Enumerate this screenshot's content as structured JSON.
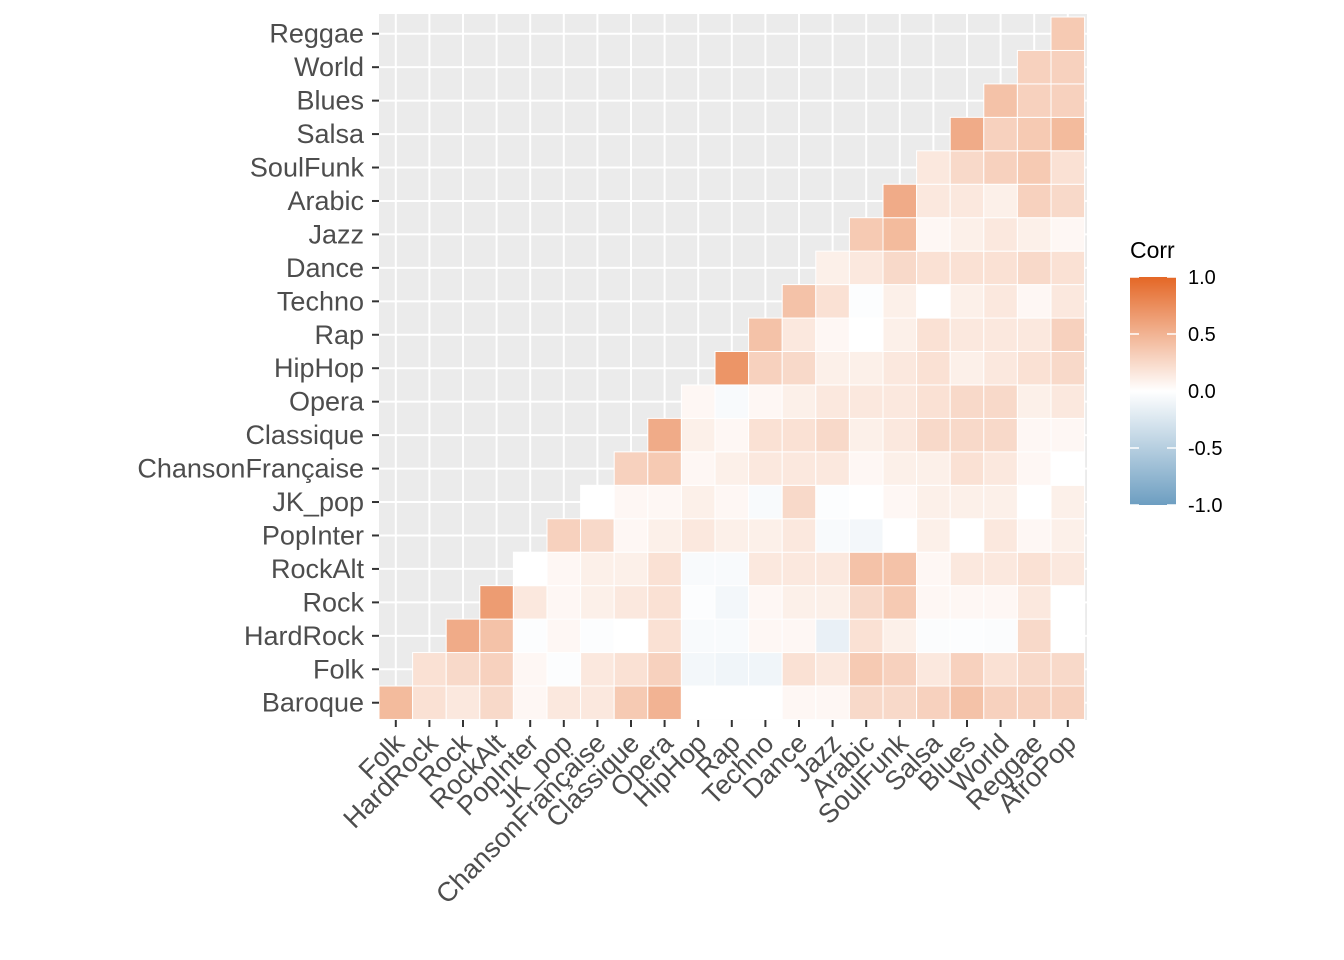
{
  "chart_data": {
    "type": "heatmap",
    "title": "",
    "xlabel": "",
    "ylabel": "",
    "x_categories": [
      "Folk",
      "HardRock",
      "Rock",
      "RockAlt",
      "PopInter",
      "JK_pop",
      "ChansonFrançaise",
      "Classique",
      "Opera",
      "HipHop",
      "Rap",
      "Techno",
      "Dance",
      "Jazz",
      "Arabic",
      "SoulFunk",
      "Salsa",
      "Blues",
      "World",
      "Reggae",
      "AfroPop"
    ],
    "y_categories": [
      "Baroque",
      "Folk",
      "HardRock",
      "Rock",
      "RockAlt",
      "PopInter",
      "JK_pop",
      "ChansonFrançaise",
      "Classique",
      "Opera",
      "HipHop",
      "Rap",
      "Techno",
      "Dance",
      "Jazz",
      "Arabic",
      "SoulFunk",
      "Salsa",
      "Blues",
      "World",
      "Reggae"
    ],
    "values": [
      [
        0.45,
        0.2,
        0.15,
        0.25,
        0.05,
        0.15,
        0.15,
        0.35,
        0.5,
        0.0,
        0.0,
        0.0,
        0.05,
        0.05,
        0.25,
        0.25,
        0.3,
        0.4,
        0.3,
        0.3,
        0.3
      ],
      [
        null,
        0.2,
        0.25,
        0.3,
        0.05,
        -0.02,
        0.15,
        0.2,
        0.3,
        -0.08,
        -0.1,
        -0.1,
        0.2,
        0.15,
        0.35,
        0.3,
        0.15,
        0.3,
        0.2,
        0.25,
        0.25
      ],
      [
        null,
        null,
        0.55,
        0.4,
        -0.02,
        0.05,
        -0.02,
        0.0,
        0.2,
        -0.05,
        -0.05,
        0.05,
        0.05,
        -0.15,
        0.2,
        0.1,
        -0.03,
        -0.02,
        -0.03,
        0.25,
        0.0
      ],
      [
        null,
        null,
        null,
        0.65,
        0.15,
        0.05,
        0.1,
        0.15,
        0.2,
        -0.02,
        -0.08,
        0.05,
        0.1,
        0.1,
        0.25,
        0.35,
        0.05,
        0.05,
        0.05,
        0.15,
        0.0
      ],
      [
        null,
        null,
        null,
        null,
        0.0,
        0.05,
        0.1,
        0.1,
        0.2,
        -0.05,
        -0.05,
        0.15,
        0.15,
        0.15,
        0.4,
        0.4,
        0.05,
        0.15,
        0.15,
        0.2,
        0.15
      ],
      [
        null,
        null,
        null,
        null,
        null,
        0.3,
        0.25,
        0.05,
        0.1,
        0.15,
        0.1,
        0.1,
        0.15,
        -0.05,
        -0.08,
        0.0,
        0.1,
        0.0,
        0.15,
        0.05,
        0.1
      ],
      [
        null,
        null,
        null,
        null,
        null,
        null,
        0.0,
        0.05,
        0.05,
        0.1,
        0.05,
        -0.05,
        0.25,
        -0.02,
        0.0,
        0.05,
        0.1,
        0.1,
        0.1,
        0.0,
        0.1
      ],
      [
        null,
        null,
        null,
        null,
        null,
        null,
        null,
        0.3,
        0.35,
        0.05,
        0.1,
        0.15,
        0.15,
        0.15,
        0.05,
        0.1,
        0.1,
        0.2,
        0.15,
        0.05,
        0.0
      ],
      [
        null,
        null,
        null,
        null,
        null,
        null,
        null,
        null,
        0.55,
        0.1,
        0.05,
        0.2,
        0.2,
        0.25,
        0.1,
        0.15,
        0.25,
        0.25,
        0.25,
        0.05,
        0.05
      ],
      [
        null,
        null,
        null,
        null,
        null,
        null,
        null,
        null,
        null,
        0.05,
        -0.05,
        0.05,
        0.1,
        0.15,
        0.15,
        0.15,
        0.2,
        0.25,
        0.25,
        0.1,
        0.15
      ],
      [
        null,
        null,
        null,
        null,
        null,
        null,
        null,
        null,
        null,
        null,
        0.7,
        0.3,
        0.25,
        0.1,
        0.1,
        0.15,
        0.2,
        0.1,
        0.15,
        0.2,
        0.25
      ],
      [
        null,
        null,
        null,
        null,
        null,
        null,
        null,
        null,
        null,
        null,
        null,
        0.4,
        0.15,
        0.05,
        0.0,
        0.1,
        0.2,
        0.15,
        0.15,
        0.15,
        0.3
      ],
      [
        null,
        null,
        null,
        null,
        null,
        null,
        null,
        null,
        null,
        null,
        null,
        null,
        0.4,
        0.2,
        -0.02,
        0.1,
        0.0,
        0.1,
        0.15,
        0.05,
        0.15
      ],
      [
        null,
        null,
        null,
        null,
        null,
        null,
        null,
        null,
        null,
        null,
        null,
        null,
        null,
        0.1,
        0.15,
        0.25,
        0.2,
        0.2,
        0.2,
        0.25,
        0.2
      ],
      [
        null,
        null,
        null,
        null,
        null,
        null,
        null,
        null,
        null,
        null,
        null,
        null,
        null,
        null,
        0.35,
        0.45,
        0.05,
        0.1,
        0.15,
        0.1,
        0.05
      ],
      [
        null,
        null,
        null,
        null,
        null,
        null,
        null,
        null,
        null,
        null,
        null,
        null,
        null,
        null,
        null,
        0.55,
        0.15,
        0.15,
        0.1,
        0.3,
        0.25
      ],
      [
        null,
        null,
        null,
        null,
        null,
        null,
        null,
        null,
        null,
        null,
        null,
        null,
        null,
        null,
        null,
        null,
        0.15,
        0.25,
        0.3,
        0.35,
        0.2
      ],
      [
        null,
        null,
        null,
        null,
        null,
        null,
        null,
        null,
        null,
        null,
        null,
        null,
        null,
        null,
        null,
        null,
        null,
        0.55,
        0.3,
        0.35,
        0.45
      ],
      [
        null,
        null,
        null,
        null,
        null,
        null,
        null,
        null,
        null,
        null,
        null,
        null,
        null,
        null,
        null,
        null,
        null,
        null,
        0.4,
        0.3,
        0.3
      ],
      [
        null,
        null,
        null,
        null,
        null,
        null,
        null,
        null,
        null,
        null,
        null,
        null,
        null,
        null,
        null,
        null,
        null,
        null,
        null,
        0.3,
        0.3
      ],
      [
        null,
        null,
        null,
        null,
        null,
        null,
        null,
        null,
        null,
        null,
        null,
        null,
        null,
        null,
        null,
        null,
        null,
        null,
        null,
        null,
        0.35
      ]
    ],
    "value_range": [
      -1,
      1
    ],
    "lower_triangle_empty": true,
    "grid": true,
    "legend": {
      "title": "Corr",
      "position": "right",
      "ticks": [
        "1.0",
        "0.5",
        "0.0",
        "-0.5",
        "-1.0"
      ],
      "tick_values": [
        1,
        0.5,
        0,
        -0.5,
        -1
      ]
    },
    "colors": {
      "low": "#6D9EC1",
      "mid": "#FFFFFF",
      "high": "#E46726",
      "panel_background": "#EBEBEB",
      "grid": "#FFFFFF"
    }
  }
}
